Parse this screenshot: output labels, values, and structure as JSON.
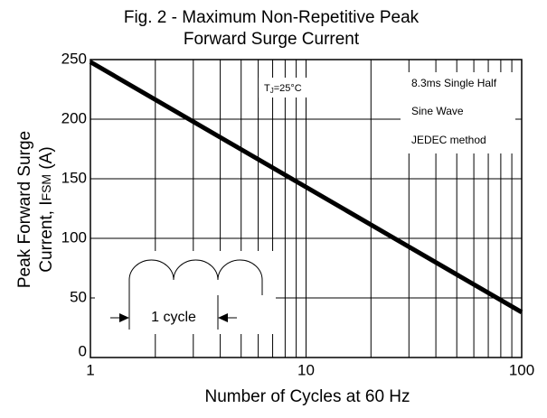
{
  "chart_data": {
    "type": "line",
    "title": [
      "Fig. 2 - Maximum Non-Repetitive Peak",
      "Forward Surge Current"
    ],
    "y_label": {
      "line1": "Peak Forward Surge",
      "line2": [
        "Current, I",
        "FSM",
        " (A)"
      ]
    },
    "x_label": "Number of Cycles at 60 Hz",
    "x_scale": "log",
    "xlim": [
      1,
      100
    ],
    "xticks": [
      1,
      10,
      100
    ],
    "x_minor_gridlines": [
      2,
      3,
      4,
      5,
      6,
      7,
      8,
      9,
      20,
      30,
      40,
      50,
      60,
      70,
      80,
      90
    ],
    "ylim": [
      0,
      250
    ],
    "yticks": [
      0,
      50,
      100,
      150,
      200,
      250
    ],
    "grid": true,
    "series": [
      {
        "color": "#000000",
        "x": [
          1,
          100
        ],
        "values": [
          248,
          38
        ]
      }
    ],
    "annotations": {
      "temperature": [
        "T",
        "J",
        "=25°C"
      ],
      "conditions": [
        "8.3ms Single Half",
        "Sine Wave",
        "JEDEC method"
      ],
      "inset": "1 cycle"
    }
  }
}
